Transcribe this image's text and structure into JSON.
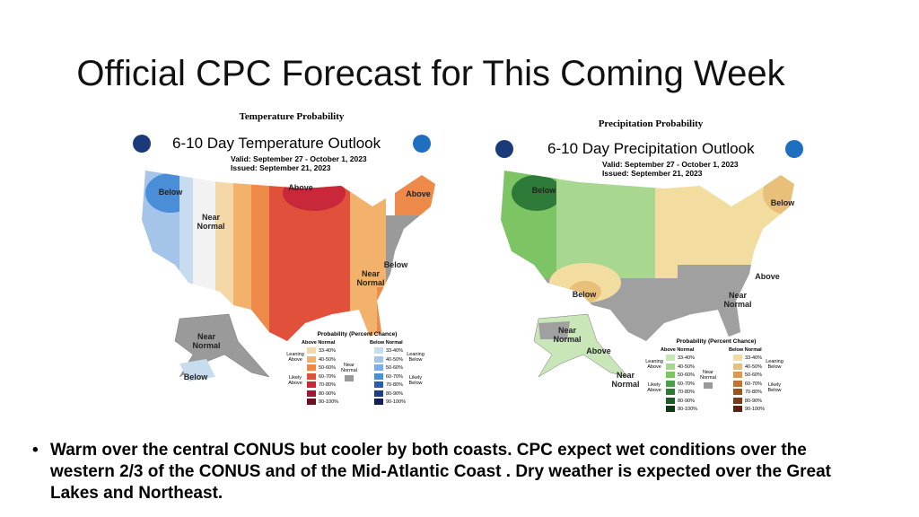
{
  "title": "Official CPC Forecast for This Coming Week",
  "maps": [
    {
      "caption": "Temperature Probability",
      "heading": "6-10 Day Temperature Outlook",
      "valid": "Valid:  September 27 - October 1, 2023",
      "issued": "Issued:  September 21, 2023",
      "labels": [
        "Below",
        "Near Normal",
        "Above",
        "Above",
        "Below",
        "Near Normal",
        "Near Normal",
        "Below"
      ],
      "legend": {
        "title": "Probability (Percent Chance)",
        "above": "Above Normal",
        "below": "Below Normal",
        "leaning_above": "Leaning Above",
        "likely_above": "Likely Above",
        "near_normal": "Near Normal",
        "leaning_below": "Leaning Below",
        "likely_below": "Likely Below",
        "ranges": [
          "33-40%",
          "40-50%",
          "50-60%",
          "60-70%",
          "70-80%",
          "80-90%",
          "90-100%"
        ]
      }
    },
    {
      "caption": "Precipitation Probability",
      "heading": "6-10 Day Precipitation Outlook",
      "valid": "Valid:  September 27 - October 1, 2023",
      "issued": "Issued:  September 21, 2023",
      "labels": [
        "Below",
        "Below",
        "Above",
        "Near Normal",
        "Below",
        "Near Normal",
        "Above",
        "Near Normal"
      ],
      "legend": {
        "title": "Probability (Percent Chance)",
        "above": "Above Normal",
        "below": "Below Normal",
        "leaning_above": "Leaning Above",
        "likely_above": "Likely Above",
        "near_normal": "Near Normal",
        "leaning_below": "Leaning Below",
        "likely_below": "Likely Below",
        "ranges": [
          "33-40%",
          "40-50%",
          "50-60%",
          "60-70%",
          "70-80%",
          "80-90%",
          "90-100%"
        ]
      }
    }
  ],
  "bullet": "Warm over the central CONUS but cooler by both coasts.  CPC expect wet conditions over the western 2/3 of the CONUS and of the Mid-Atlantic Coast . Dry weather is expected over the Great Lakes and Northeast."
}
